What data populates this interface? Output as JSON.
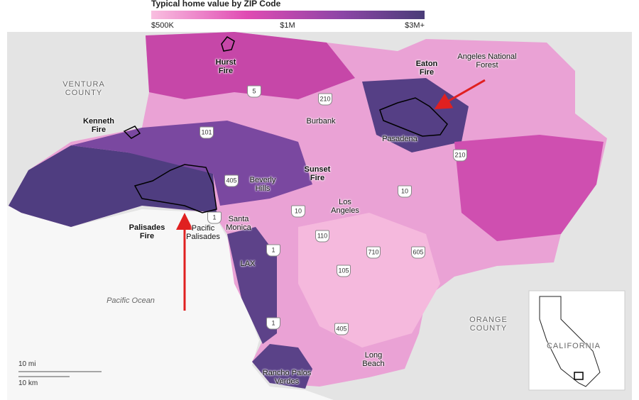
{
  "legend": {
    "title": "Typical home value by ZIP Code",
    "labels": [
      "$500K",
      "$1M",
      "$3M+"
    ]
  },
  "regions": [
    "VENTURA COUNTY",
    "ORANGE COUNTY",
    "Angeles National Forest",
    "Pacific Ocean",
    "CALIFORNIA"
  ],
  "fires": [
    "Hurst Fire",
    "Kenneth Fire",
    "Eaton Fire",
    "Sunset Fire",
    "Palisades Fire"
  ],
  "places": [
    "Burbank",
    "Pasadena",
    "Beverly Hills",
    "Los Angeles",
    "Santa Monica",
    "Pacific Palisades",
    "LAX",
    "Long Beach",
    "Rancho Palos Verdes"
  ],
  "highways": [
    "5",
    "210",
    "101",
    "405",
    "10",
    "210",
    "10",
    "110",
    "710",
    "605",
    "105",
    "405",
    "1",
    "1",
    "1"
  ],
  "scale": [
    "10 mi",
    "10 km"
  ]
}
